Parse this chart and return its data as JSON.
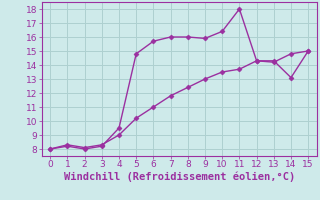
{
  "line1_x": [
    0,
    1,
    2,
    3,
    4,
    5,
    6,
    7,
    8,
    9,
    10,
    11,
    12,
    13,
    14,
    15
  ],
  "line1_y": [
    8.0,
    8.2,
    8.0,
    8.2,
    9.5,
    14.8,
    15.7,
    16.0,
    16.0,
    15.9,
    16.4,
    18.0,
    14.3,
    14.3,
    13.1,
    15.0
  ],
  "line2_x": [
    0,
    1,
    2,
    3,
    4,
    5,
    6,
    7,
    8,
    9,
    10,
    11,
    12,
    13,
    14,
    15
  ],
  "line2_y": [
    8.0,
    8.3,
    8.1,
    8.3,
    9.0,
    10.2,
    11.0,
    11.8,
    12.4,
    13.0,
    13.5,
    13.7,
    14.3,
    14.2,
    14.8,
    15.0
  ],
  "color": "#9b30a0",
  "marker": "D",
  "markersize": 2.5,
  "linewidth": 1.0,
  "xlim": [
    -0.5,
    15.5
  ],
  "ylim": [
    7.5,
    18.5
  ],
  "xticks": [
    0,
    1,
    2,
    3,
    4,
    5,
    6,
    7,
    8,
    9,
    10,
    11,
    12,
    13,
    14,
    15
  ],
  "yticks": [
    8,
    9,
    10,
    11,
    12,
    13,
    14,
    15,
    16,
    17,
    18
  ],
  "xlabel": "Windchill (Refroidissement éolien,°C)",
  "xlabel_fontsize": 7.5,
  "tick_fontsize": 6.5,
  "background_color": "#ceeaea",
  "grid_color": "#aed0d0"
}
